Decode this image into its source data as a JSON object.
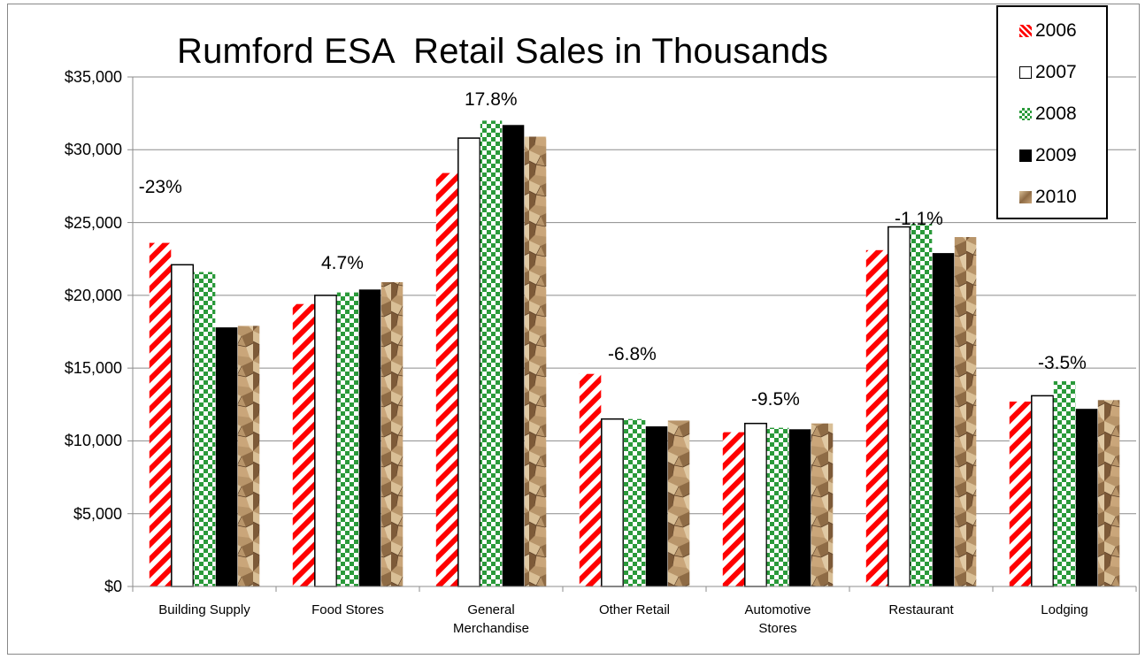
{
  "chart_data": {
    "type": "bar",
    "title": "Rumford ESA  Retail Sales in Thousands",
    "xlabel": "",
    "ylabel": "",
    "ylim": [
      0,
      35000
    ],
    "yticks": [
      "$0",
      "$5,000",
      "$10,000",
      "$15,000",
      "$20,000",
      "$25,000",
      "$30,000",
      "$35,000"
    ],
    "ytick_values": [
      0,
      5000,
      10000,
      15000,
      20000,
      25000,
      30000,
      35000
    ],
    "grid": true,
    "legend_position": "top-right",
    "categories": [
      [
        "Building Supply"
      ],
      [
        "Food Stores"
      ],
      [
        "General",
        "Merchandise"
      ],
      [
        "Other Retail"
      ],
      [
        "Automotive",
        "Stores"
      ],
      [
        "Restaurant"
      ],
      [
        "Lodging"
      ]
    ],
    "series": [
      {
        "name": "2006",
        "pattern": "red-diagonal-stripes",
        "color": "#ff0000",
        "values": [
          23600,
          19400,
          28400,
          14600,
          10600,
          23100,
          12700
        ]
      },
      {
        "name": "2007",
        "pattern": "white-outlined",
        "color": "#ffffff",
        "values": [
          22100,
          20000,
          30800,
          11500,
          11200,
          24700,
          13100
        ]
      },
      {
        "name": "2008",
        "pattern": "green-checker",
        "color": "#2a9a3a",
        "values": [
          21600,
          20200,
          32000,
          11500,
          10900,
          24900,
          14100
        ]
      },
      {
        "name": "2009",
        "pattern": "solid-black",
        "color": "#000000",
        "values": [
          17800,
          20400,
          31700,
          11000,
          10800,
          22900,
          12200
        ]
      },
      {
        "name": "2010",
        "pattern": "crumpled-paper",
        "color": "#b8956a",
        "values": [
          17900,
          20900,
          30900,
          11400,
          11200,
          24000,
          12800
        ]
      }
    ],
    "annotations": [
      {
        "category_index": 0,
        "text": "-23%",
        "y_value": 27400
      },
      {
        "category_index": 1,
        "text": "4.7%",
        "y_value": 22200
      },
      {
        "category_index": 2,
        "text": "17.8%",
        "y_value": 33400
      },
      {
        "category_index": 3,
        "text": "-6.8%",
        "y_value": 15900
      },
      {
        "category_index": 4,
        "text": "-9.5%",
        "y_value": 12800
      },
      {
        "category_index": 5,
        "text": "-1.1%",
        "y_value": 25200
      },
      {
        "category_index": 6,
        "text": "-3.5%",
        "y_value": 15300
      }
    ]
  }
}
